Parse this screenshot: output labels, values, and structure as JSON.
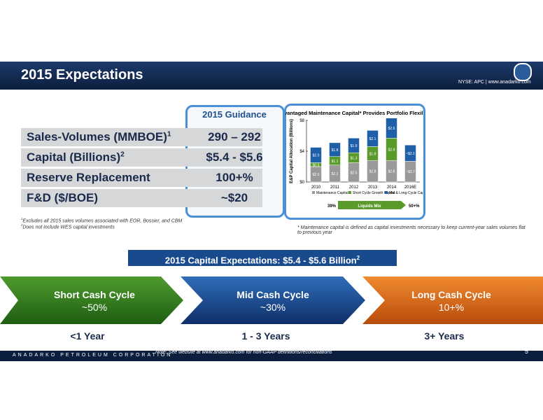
{
  "header": {
    "title": "2015 Expectations",
    "ticker": "NYSE: APC | www.anadarko.com"
  },
  "table": {
    "column_header": "2015 Guidance",
    "rows": [
      {
        "label": "Sales-Volumes (MMBOE)",
        "note": "1",
        "value": "290 – 292"
      },
      {
        "label": "Capital (Billions)",
        "note": "2",
        "value": "$5.4 - $5.6"
      },
      {
        "label": "Reserve Replacement",
        "value": "100+%"
      },
      {
        "label": "F&D ($/BOE)",
        "value": "~$20"
      }
    ],
    "footnotes": [
      {
        "mark": "1",
        "text": "Excludes all 2015 sales volumes associated with EOR, Bossier, and CBM"
      },
      {
        "mark": "2",
        "text": "Does not include WES capital investments"
      }
    ]
  },
  "chart": {
    "type": "bar",
    "stacked": true,
    "title": "Advantaged Maintenance Capital* Provides Portfolio Flexibility",
    "y_label": "E&P Capital Allocation (Billions)",
    "categories": [
      "2010",
      "2011",
      "2012",
      "2013",
      "2014",
      "2016E"
    ],
    "ylim": [
      0,
      8
    ],
    "yticks": [
      {
        "value": 0,
        "label": "$0"
      },
      {
        "value": 4,
        "label": "$4"
      },
      {
        "value": 8,
        "label": "$8"
      }
    ],
    "series": [
      {
        "name": "Maintenance Capital",
        "color": "#9a9a9a",
        "values": [
          2.0,
          2.2,
          2.5,
          2.8,
          2.8,
          2.7
        ],
        "value_labels": [
          "$2.0",
          "$2.2",
          "$2.5",
          "$2.8",
          "$2.8",
          "~$2.7"
        ]
      },
      {
        "name": "Short Cycle Growth Capital",
        "color": "#5a9a2a",
        "values": [
          0.5,
          1.1,
          1.3,
          1.8,
          2.9,
          null
        ],
        "value_labels": [
          "$0.5",
          "$1.1",
          "$1.3",
          "$1.8",
          "$2.9",
          null
        ]
      },
      {
        "name": "Mid & Long-Cycle Capital",
        "color": "#1f5fa8",
        "values": [
          2.0,
          1.8,
          1.9,
          2.1,
          2.6,
          2.1
        ],
        "value_labels": [
          "$2.0",
          "$1.8",
          "$1.9",
          "$2.1",
          "$2.6",
          "~$2.1"
        ]
      }
    ],
    "mix": {
      "start": "39%",
      "label": "Liquids Mix",
      "end": "50+%"
    },
    "footnote": "* Maintenance capital is defined as capital investments necessary to keep current-year sales volumes flat to previous year"
  },
  "banner": {
    "text": "2015 Capital Expectations: $5.4 - $5.6 Billion",
    "note": "2"
  },
  "cycles": [
    {
      "title": "Short Cash Cycle",
      "share": "~50%",
      "duration": "<1 Year"
    },
    {
      "title": "Mid Cash Cycle",
      "share": "~30%",
      "duration": "1 - 3 Years"
    },
    {
      "title": "Long Cash Cycle",
      "share": "10+%",
      "duration": "3+ Years"
    }
  ],
  "footer": {
    "company": "ANADARKO PETROLEUM CORPORATION",
    "note": "Note: See website at www.anadarko.com for non-GAAP definitions/reconciliations",
    "page": "5"
  }
}
